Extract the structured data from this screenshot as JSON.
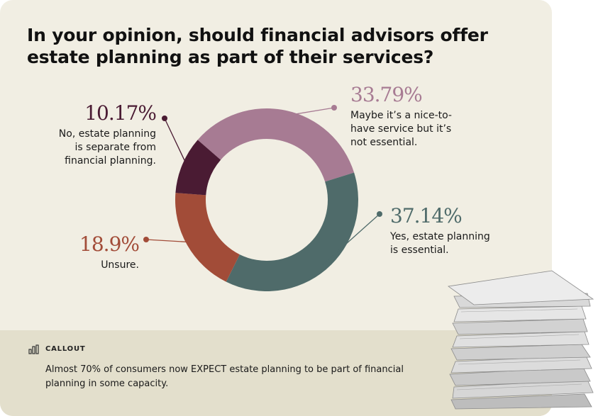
{
  "title": "In your opinion, should financial advisors offer estate planning as part of their services?",
  "callout": {
    "label": "CALLOUT",
    "text": "Almost 70% of consumers now EXPECT estate planning to be part of financial planning in some capacity."
  },
  "chart_data": {
    "type": "pie",
    "donut": true,
    "title": "In your opinion, should financial advisors offer estate planning as part of their services?",
    "slices": [
      {
        "value": 33.79,
        "value_label": "33.79%",
        "label_lines": [
          "Maybe it’s a nice-to-",
          "have service but it’s",
          "not essential."
        ],
        "color": "#a77b93"
      },
      {
        "value": 37.14,
        "value_label": "37.14%",
        "label_lines": [
          "Yes, estate planning",
          "is essential."
        ],
        "color": "#4f6b6a"
      },
      {
        "value": 18.9,
        "value_label": "18.9%",
        "label_lines": [
          "Unsure."
        ],
        "color": "#a24c38"
      },
      {
        "value": 10.17,
        "value_label": "10.17%",
        "label_lines": [
          "No, estate planning",
          "is separate from",
          "financial planning."
        ],
        "color": "#4a1b33"
      }
    ]
  }
}
